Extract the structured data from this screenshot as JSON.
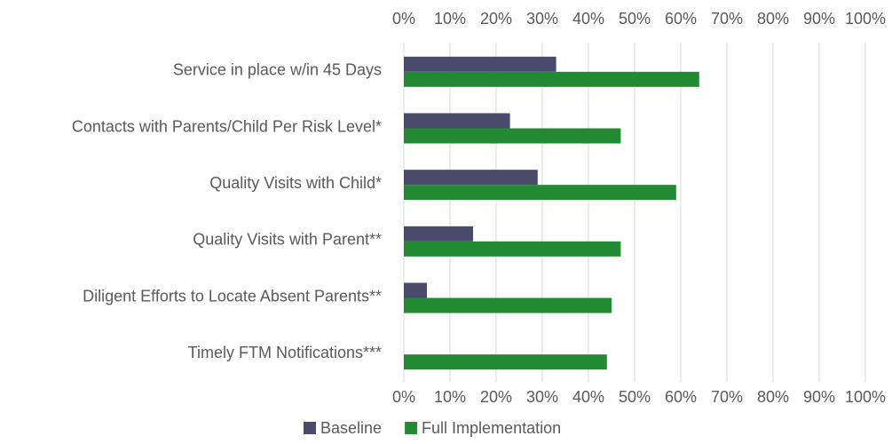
{
  "chart_data": {
    "type": "bar",
    "orientation": "horizontal",
    "categories": [
      "Service in place w/in 45 Days",
      "Contacts with Parents/Child Per Risk Level*",
      "Quality Visits with Child*",
      "Quality Visits with Parent**",
      "Diligent Efforts to Locate Absent Parents**",
      "Timely FTM Notifications***"
    ],
    "series": [
      {
        "name": "Baseline",
        "color": "#4a4a6b",
        "values": [
          33,
          23,
          29,
          15,
          5,
          0
        ]
      },
      {
        "name": "Full Implementation",
        "color": "#218a32",
        "values": [
          64,
          47,
          59,
          47,
          45,
          44
        ]
      }
    ],
    "xlim": [
      0,
      100
    ],
    "xticks": [
      {
        "value": 0,
        "label": "0%"
      },
      {
        "value": 10,
        "label": "10%"
      },
      {
        "value": 20,
        "label": "20%"
      },
      {
        "value": 30,
        "label": "30%"
      },
      {
        "value": 40,
        "label": "40%"
      },
      {
        "value": 50,
        "label": "50%"
      },
      {
        "value": 60,
        "label": "60%"
      },
      {
        "value": 70,
        "label": "70%"
      },
      {
        "value": 80,
        "label": "80%"
      },
      {
        "value": 90,
        "label": "90%"
      },
      {
        "value": 100,
        "label": "100%"
      }
    ],
    "grid": true,
    "legend": "bottom"
  }
}
